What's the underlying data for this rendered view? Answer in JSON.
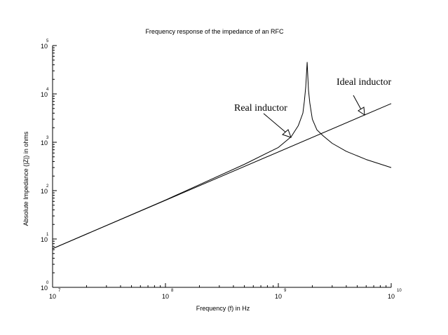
{
  "chart_data": {
    "type": "line",
    "title": "Frequency response of the impedance of an RFC",
    "xlabel": "Frequency (f) in Hz",
    "ylabel": "Absolute Impedance (|Z|) in  ohms",
    "x_scale": "log",
    "y_scale": "log",
    "xlim": [
      10000000,
      10000000000
    ],
    "ylim": [
      1,
      100000
    ],
    "x_ticks": [
      {
        "value": 10000000,
        "base": "10",
        "exp": "7"
      },
      {
        "value": 100000000,
        "base": "10",
        "exp": "8"
      },
      {
        "value": 1000000000,
        "base": "10",
        "exp": "9"
      },
      {
        "value": 10000000000,
        "base": "10",
        "exp": "10"
      }
    ],
    "y_ticks": [
      {
        "value": 1,
        "base": "10",
        "exp": "0"
      },
      {
        "value": 10,
        "base": "10",
        "exp": "1"
      },
      {
        "value": 100,
        "base": "10",
        "exp": "2"
      },
      {
        "value": 1000,
        "base": "10",
        "exp": "3"
      },
      {
        "value": 10000,
        "base": "10",
        "exp": "4"
      },
      {
        "value": 100000,
        "base": "10",
        "exp": "5"
      }
    ],
    "grid": false,
    "series": [
      {
        "name": "Ideal inductor",
        "x": [
          10000000,
          10000000000
        ],
        "y": [
          6.3,
          6300
        ]
      },
      {
        "name": "Real inductor",
        "x": [
          10000000,
          100000000,
          500000000,
          1000000000,
          1300000000,
          1500000000,
          1650000000,
          1700000000,
          1750000000,
          1800000000,
          1850000000,
          1900000000,
          2000000000,
          2200000000,
          2500000000,
          3000000000,
          4000000000,
          6000000000,
          10000000000
        ],
        "y": [
          6.3,
          64,
          350,
          780,
          1300,
          2200,
          4000,
          7000,
          14000,
          45000,
          12000,
          6500,
          3000,
          1800,
          1350,
          950,
          650,
          440,
          300
        ]
      }
    ],
    "annotations": [
      {
        "text": "Real inductor",
        "target_series": "Real inductor"
      },
      {
        "text": "Ideal inductor",
        "target_series": "Ideal inductor"
      }
    ]
  }
}
